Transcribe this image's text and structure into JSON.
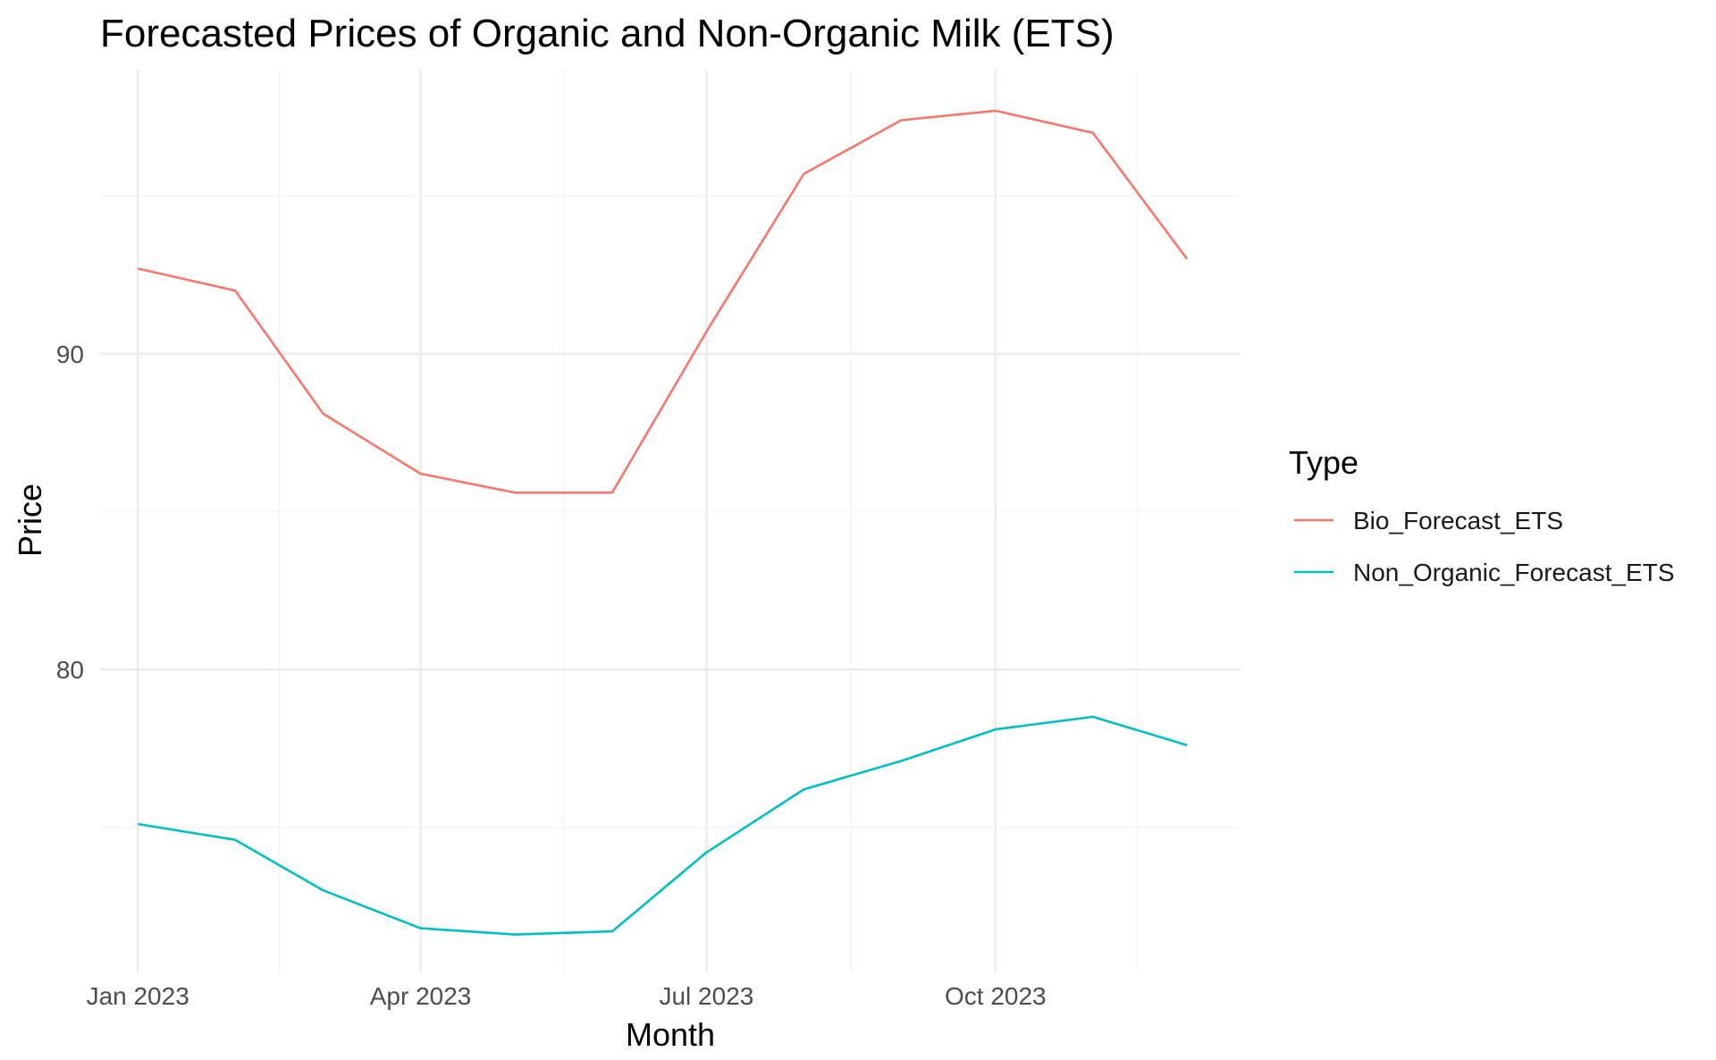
{
  "chart_data": {
    "type": "line",
    "title": "Forecasted Prices of Organic and Non-Organic Milk (ETS)",
    "xlabel": "Month",
    "ylabel": "Price",
    "x": [
      "2023-01",
      "2023-02",
      "2023-03",
      "2023-04",
      "2023-05",
      "2023-06",
      "2023-07",
      "2023-08",
      "2023-09",
      "2023-10",
      "2023-11",
      "2023-12"
    ],
    "x_tick_positions": [
      "2023-01",
      "2023-04",
      "2023-07",
      "2023-10"
    ],
    "x_tick_labels": [
      "Jan 2023",
      "Apr 2023",
      "Jul 2023",
      "Oct 2023"
    ],
    "y_tick_values": [
      80,
      90
    ],
    "y_tick_labels": [
      "80",
      "90"
    ],
    "ylim": [
      70.4,
      99.0
    ],
    "xlim": [
      "2022-12-20",
      "2023-12-18"
    ],
    "grid": true,
    "legend": {
      "title": "Type",
      "position": "right"
    },
    "series": [
      {
        "name": "Bio_Forecast_ETS",
        "color": "#F8766D",
        "values": [
          92.7,
          92.0,
          88.1,
          86.2,
          85.6,
          85.6,
          90.7,
          95.7,
          97.4,
          97.7,
          97.0,
          93.0
        ]
      },
      {
        "name": "Non_Organic_Forecast_ETS",
        "color": "#00BFC4",
        "values": [
          75.1,
          74.6,
          73.0,
          71.8,
          71.6,
          71.7,
          74.2,
          76.2,
          77.1,
          78.1,
          78.5,
          77.6
        ]
      }
    ]
  }
}
